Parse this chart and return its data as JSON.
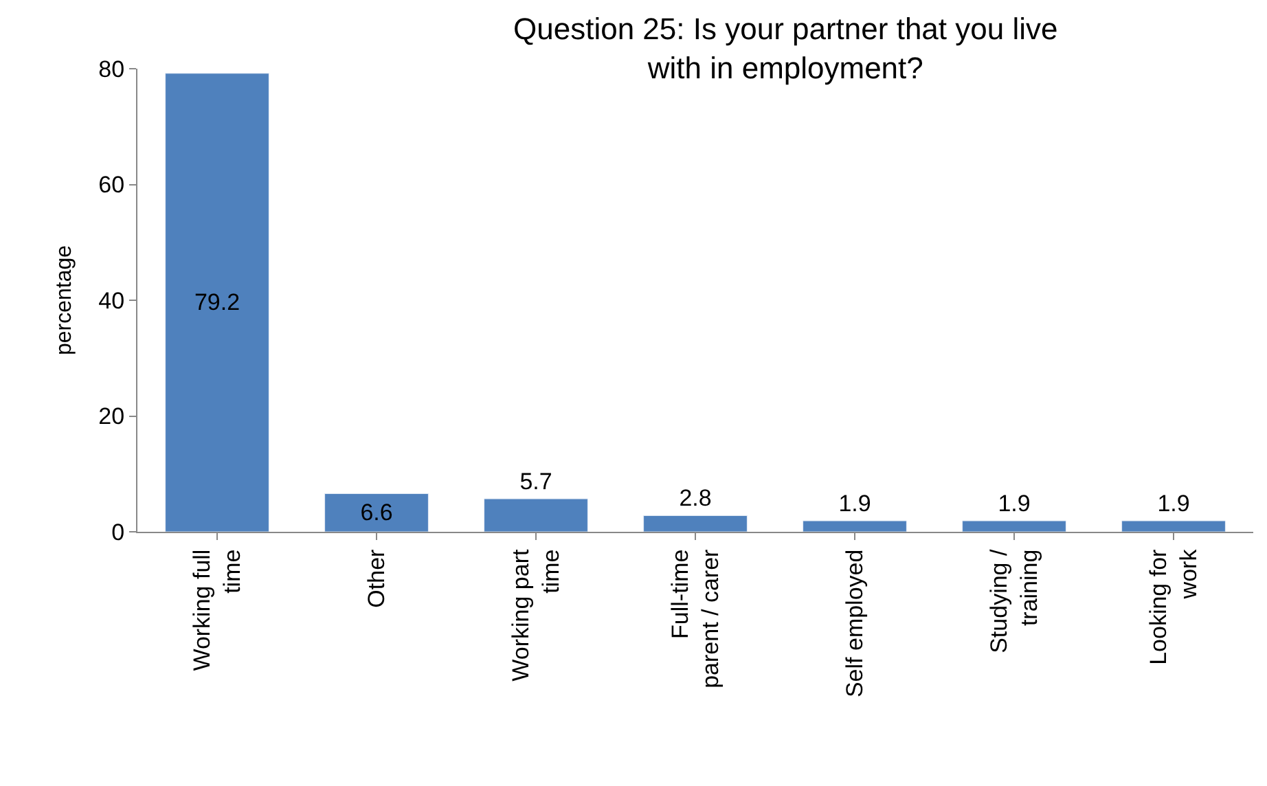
{
  "chart_data": {
    "type": "bar",
    "title": "Question 25: Is your partner that you live with in employment?",
    "ylabel": "percentage",
    "categories": [
      "Working full time",
      "Other",
      "Working part time",
      "Full-time parent / carer",
      "Self employed",
      "Studying / training",
      "Looking for work"
    ],
    "values": [
      79.2,
      6.6,
      5.7,
      2.8,
      1.9,
      1.9,
      1.9
    ],
    "color": "#4f81bd",
    "ylim": [
      0,
      80
    ],
    "yticks": [
      0,
      20,
      40,
      60,
      80
    ],
    "data_labels": true
  }
}
